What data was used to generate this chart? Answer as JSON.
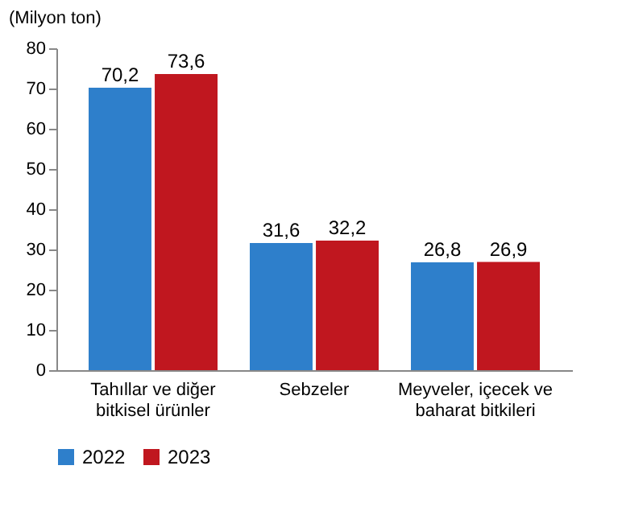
{
  "chart_data": {
    "type": "bar",
    "ylabel": "(Milyon ton)",
    "categories": [
      "Tahıllar ve diğer bitkisel ürünler",
      "Sebzeler",
      "Meyveler, içecek ve baharat bitkileri"
    ],
    "series": [
      {
        "name": "2022",
        "color": "#2e7fcb",
        "values": [
          70.2,
          31.6,
          26.8
        ],
        "value_labels": [
          "70,2",
          "31,6",
          "26,8"
        ]
      },
      {
        "name": "2023",
        "color": "#c0171f",
        "values": [
          73.6,
          32.2,
          26.9
        ],
        "value_labels": [
          "73,6",
          "32,2",
          "26,9"
        ]
      }
    ],
    "ylim": [
      0,
      80
    ],
    "yticks": [
      0,
      10,
      20,
      30,
      40,
      50,
      60,
      70,
      80
    ],
    "grid": false,
    "legend": "bottom"
  }
}
